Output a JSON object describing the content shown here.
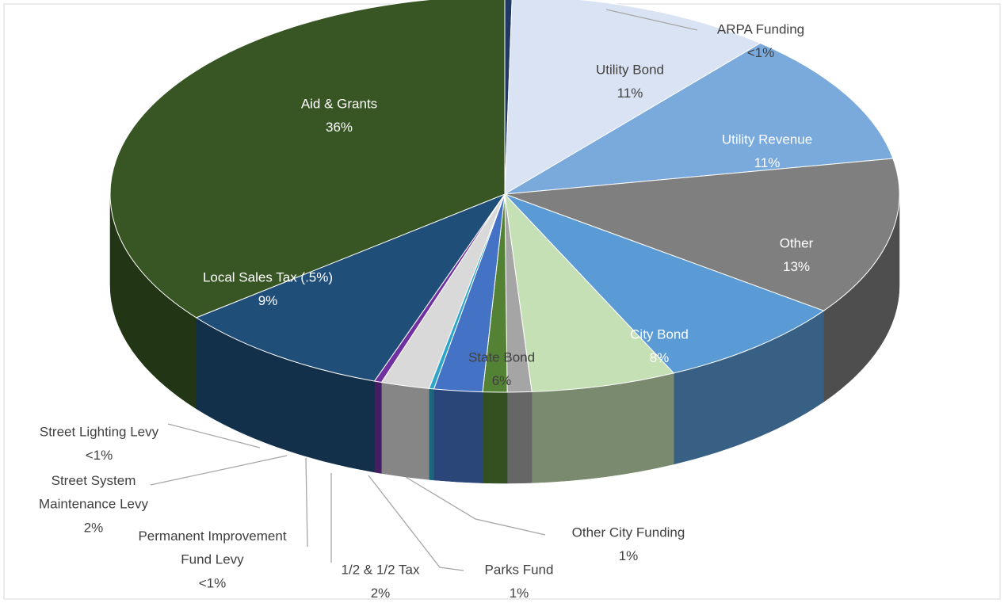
{
  "chart_data": {
    "type": "pie3d",
    "categories": [
      "ARPA Funding",
      "Utility Bond",
      "Utility Revenue",
      "Other",
      "City Bond",
      "State Bond",
      "Other City Funding",
      "Parks Fund",
      "1/2 & 1/2 Tax",
      "Permanent Improvement Fund Levy",
      "Street System Maintenance Levy",
      "Street Lighting Levy",
      "Local Sales Tax (.5%)",
      "Aid & Grants"
    ],
    "values": [
      0.3,
      11,
      11,
      13,
      8,
      6,
      1,
      1,
      2,
      0.2,
      2,
      0.3,
      9,
      36
    ],
    "value_labels": [
      "<1%",
      "11%",
      "11%",
      "13%",
      "8%",
      "6%",
      "1%",
      "1%",
      "2%",
      "<1%",
      "2%",
      "<1%",
      "9%",
      "36%"
    ],
    "colors": [
      "#1f3864",
      "#dae3f3",
      "#7aaadc",
      "#7f7f7f",
      "#5b9bd5",
      "#c5e0b4",
      "#a5a5a5",
      "#548235",
      "#4472c4",
      "#2ea6c9",
      "#d9d9d9",
      "#7030a0",
      "#1f4e79",
      "#375623"
    ]
  }
}
